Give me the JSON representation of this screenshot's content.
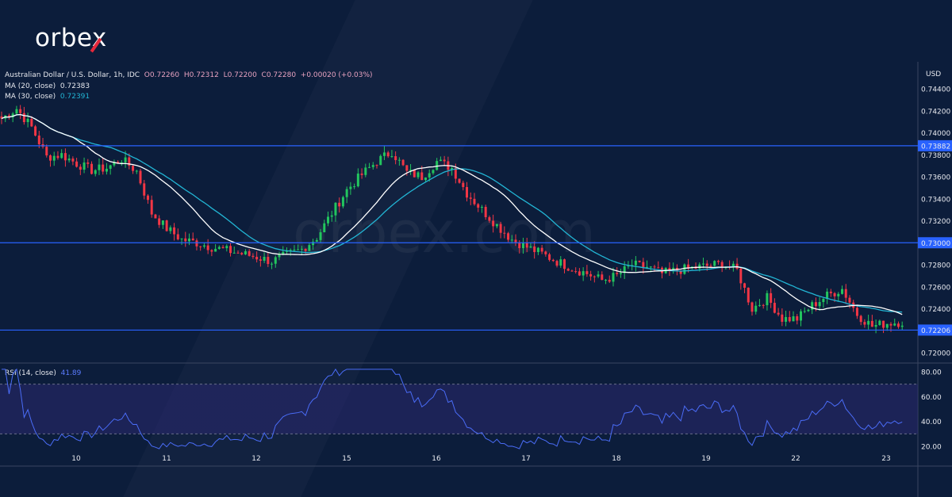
{
  "logo": {
    "text": "orbex"
  },
  "watermark": "orbex.com",
  "header": {
    "symbol": "Australian Dollar / U.S. Dollar, 1h, IDC",
    "open": "O0.72260",
    "high": "H0.72312",
    "low": "L0.72200",
    "close": "C0.72280",
    "change": "+0.00020 (+0.03%)",
    "ma20_label": "MA (20, close)",
    "ma20_value": "0.72383",
    "ma30_label": "MA (30, close)",
    "ma30_value": "0.72391",
    "rsi_label": "RSI (14, close)",
    "rsi_value": "41.89"
  },
  "colors": {
    "background": "#0c1d3b",
    "up": "#22c55e",
    "down": "#f23645",
    "ma20": "#ffffff",
    "ma30": "#22b5d4",
    "level_line": "#2962ff",
    "rsi": "#4a6cf7",
    "rsi_band": "#2a2870"
  },
  "chart_data": {
    "type": "candlestick",
    "currency": "USD",
    "timeframe": "1h",
    "price_axis": {
      "ticks": [
        "0.74400",
        "0.74200",
        "0.74000",
        "0.73800",
        "0.73600",
        "0.73400",
        "0.73200",
        "0.72800",
        "0.72600",
        "0.72400",
        "0.72000"
      ],
      "range": [
        0.719,
        0.7448
      ]
    },
    "levels": [
      "0.73882",
      "0.73000",
      "0.72206"
    ],
    "x_ticks": [
      "10",
      "11",
      "12",
      "15",
      "16",
      "17",
      "18",
      "19",
      "22",
      "23"
    ],
    "closes_4h": [
      0.7413,
      0.7422,
      0.7405,
      0.7378,
      0.738,
      0.7372,
      0.7366,
      0.7368,
      0.7376,
      0.7365,
      0.7327,
      0.7313,
      0.7303,
      0.73,
      0.7296,
      0.7293,
      0.729,
      0.7287,
      0.7283,
      0.7289,
      0.7294,
      0.7305,
      0.7327,
      0.7348,
      0.7362,
      0.7374,
      0.7383,
      0.7364,
      0.736,
      0.7374,
      0.7368,
      0.7345,
      0.733,
      0.7316,
      0.7303,
      0.7296,
      0.729,
      0.7283,
      0.7277,
      0.7272,
      0.7266,
      0.727,
      0.728,
      0.7278,
      0.7272,
      0.7275,
      0.7277,
      0.7279,
      0.7281,
      0.7275,
      0.724,
      0.725,
      0.7231,
      0.7231,
      0.7243,
      0.7252,
      0.7258,
      0.7235,
      0.7224,
      0.7227,
      0.7228
    ],
    "rsi_axis": {
      "ticks": [
        "80.00",
        "60.00",
        "40.00",
        "20.00"
      ],
      "range": [
        16,
        84
      ],
      "band": [
        30,
        70
      ]
    },
    "grid": false
  }
}
